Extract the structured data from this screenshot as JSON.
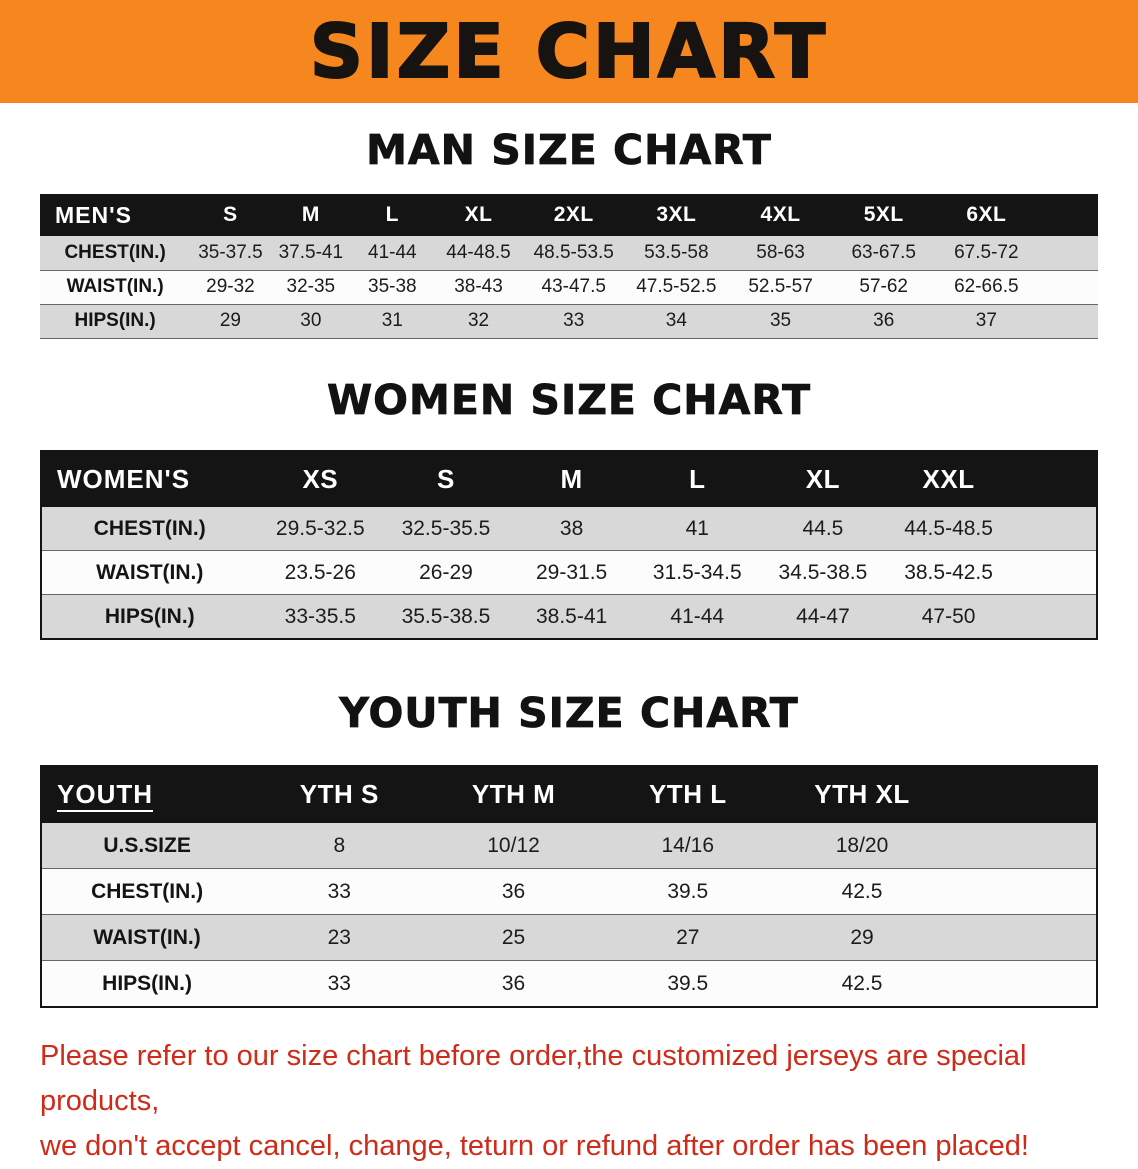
{
  "banner": {
    "title": "SIZE CHART",
    "background_color": "#f6871e",
    "text_color": "#171310"
  },
  "tables": {
    "men": {
      "heading": "MAN SIZE CHART",
      "header": [
        "MEN'S",
        "S",
        "M",
        "L",
        "XL",
        "2XL",
        "3XL",
        "4XL",
        "5XL",
        "6XL"
      ],
      "rows": [
        {
          "label": "CHEST(IN.)",
          "values": [
            "35-37.5",
            "37.5-41",
            "41-44",
            "44-48.5",
            "48.5-53.5",
            "53.5-58",
            "58-63",
            "63-67.5",
            "67.5-72"
          ]
        },
        {
          "label": "WAIST(IN.)",
          "values": [
            "29-32",
            "32-35",
            "35-38",
            "38-43",
            "43-47.5",
            "47.5-52.5",
            "52.5-57",
            "57-62",
            "62-66.5"
          ]
        },
        {
          "label": "HIPS(IN.)",
          "values": [
            "29",
            "30",
            "31",
            "32",
            "33",
            "34",
            "35",
            "36",
            "37"
          ]
        }
      ]
    },
    "women": {
      "heading": "WOMEN SIZE CHART",
      "header": [
        "WOMEN'S",
        "XS",
        "S",
        "M",
        "L",
        "XL",
        "XXL"
      ],
      "rows": [
        {
          "label": "CHEST(IN.)",
          "values": [
            "29.5-32.5",
            "32.5-35.5",
            "38",
            "41",
            "44.5",
            "44.5-48.5"
          ]
        },
        {
          "label": "WAIST(IN.)",
          "values": [
            "23.5-26",
            "26-29",
            "29-31.5",
            "31.5-34.5",
            "34.5-38.5",
            "38.5-42.5"
          ]
        },
        {
          "label": "HIPS(IN.)",
          "values": [
            "33-35.5",
            "35.5-38.5",
            "38.5-41",
            "41-44",
            "44-47",
            "47-50"
          ]
        }
      ]
    },
    "youth": {
      "heading": "YOUTH SIZE CHART",
      "header": [
        "YOUTH",
        "YTH S",
        "YTH M",
        "YTH L",
        "YTH XL"
      ],
      "rows": [
        {
          "label": "U.S.SIZE",
          "values": [
            "8",
            "10/12",
            "14/16",
            "18/20"
          ]
        },
        {
          "label": "CHEST(IN.)",
          "values": [
            "33",
            "36",
            "39.5",
            "42.5"
          ]
        },
        {
          "label": "WAIST(IN.)",
          "values": [
            "23",
            "25",
            "27",
            "29"
          ]
        },
        {
          "label": "HIPS(IN.)",
          "values": [
            "33",
            "36",
            "39.5",
            "42.5"
          ]
        }
      ]
    }
  },
  "disclaimer": {
    "line1": "Please refer to our size chart before order,the customized jerseys are special products,",
    "line2": "we don't accept cancel, change, teturn or refund after order has been placed!",
    "text_color": "#d02a18"
  }
}
